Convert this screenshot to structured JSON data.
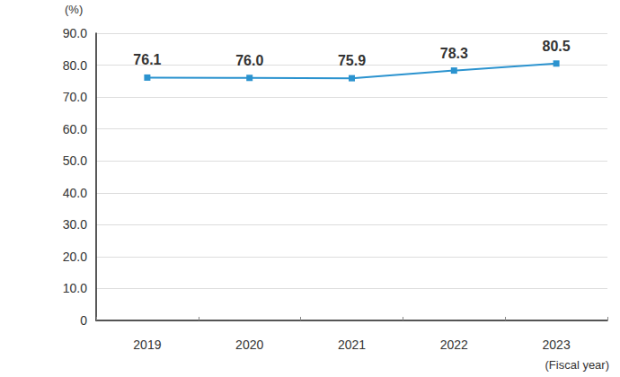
{
  "chart_data": {
    "type": "line",
    "categories": [
      "2019",
      "2020",
      "2021",
      "2022",
      "2023"
    ],
    "values": [
      76.1,
      76.0,
      75.9,
      78.3,
      80.5
    ],
    "value_labels": [
      "76.1",
      "76.0",
      "75.9",
      "78.3",
      "80.5"
    ],
    "data_labels": true,
    "color": "#2b93cf",
    "marker": "square",
    "ylabel": "(%)",
    "xlabel": "(Fiscal year)",
    "ylim": [
      0,
      90
    ],
    "yticks": [
      0,
      {
        "value": 10,
        "label": "10.0"
      },
      {
        "value": 20,
        "label": "20.0"
      },
      {
        "value": 30,
        "label": "30.0"
      },
      {
        "value": 40,
        "label": "40.0"
      },
      {
        "value": 50,
        "label": "50.0"
      },
      {
        "value": 60,
        "label": "60.0"
      },
      {
        "value": 70,
        "label": "70.0"
      },
      {
        "value": 80,
        "label": "80.0"
      },
      {
        "value": 90,
        "label": "90.0"
      }
    ],
    "grid": true
  }
}
